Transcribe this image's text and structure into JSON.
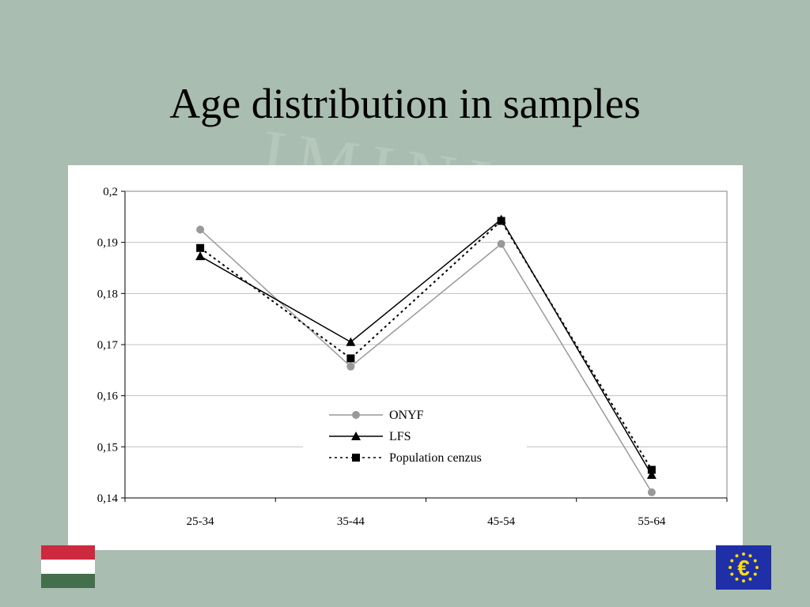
{
  "slide": {
    "title": "Age distribution in samples",
    "watermark": "IMINIS"
  },
  "chart_data": {
    "type": "line",
    "title": "",
    "xlabel": "",
    "ylabel": "",
    "categories": [
      "25-34",
      "35-44",
      "45-54",
      "55-64"
    ],
    "ylim": [
      0.14,
      0.2
    ],
    "yticks": [
      "0,14",
      "0,15",
      "0,16",
      "0,17",
      "0,18",
      "0,19",
      "0,2"
    ],
    "grid": true,
    "legend_position": "center-bottom",
    "series": [
      {
        "name": "ONYF",
        "values": [
          0.1925,
          0.1657,
          0.1897,
          0.1411
        ],
        "color": "#999999",
        "marker": "circle",
        "dash": "solid"
      },
      {
        "name": "LFS",
        "values": [
          0.1873,
          0.1705,
          0.1945,
          0.1445
        ],
        "color": "#000000",
        "marker": "triangle",
        "dash": "solid"
      },
      {
        "name": "Population cenzus",
        "values": [
          0.1889,
          0.1673,
          0.1942,
          0.1455
        ],
        "color": "#000000",
        "marker": "square",
        "dash": "dotted"
      }
    ]
  },
  "flags": {
    "hungary": {
      "colors": [
        "#cd2a3e",
        "#ffffff",
        "#436f4d"
      ]
    },
    "eu": {
      "symbol": "€",
      "colors": {
        "field": "#1f2fa8",
        "stars": "#ffdd00"
      }
    }
  }
}
